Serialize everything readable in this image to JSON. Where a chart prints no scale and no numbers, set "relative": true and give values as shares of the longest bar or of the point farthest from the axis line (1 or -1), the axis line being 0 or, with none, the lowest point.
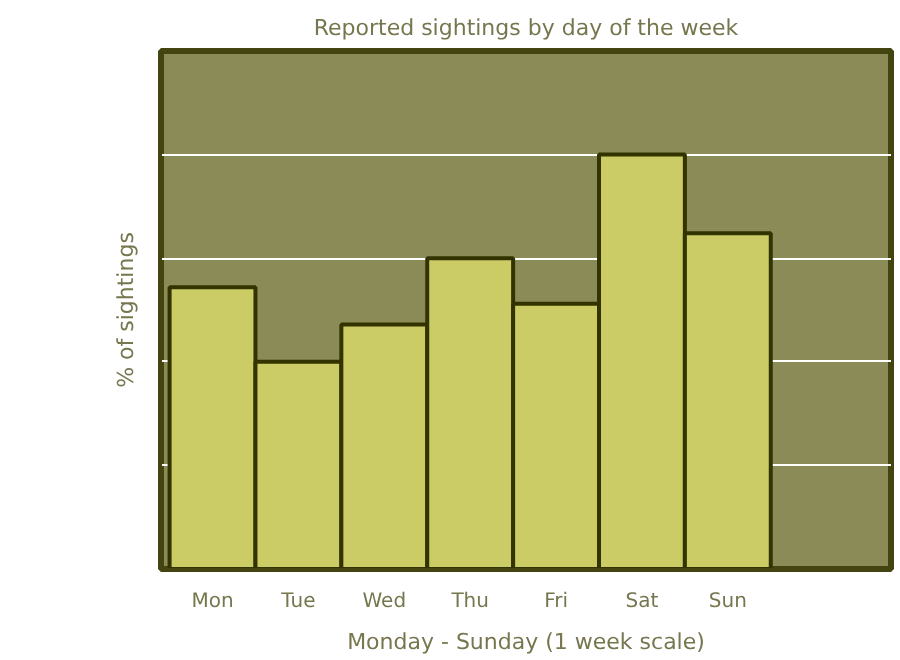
{
  "chart_data": {
    "type": "bar",
    "title": "Reported sightings by day of the week",
    "xlabel": "Monday - Sunday (1 week scale)",
    "ylabel": "% of sightings",
    "categories": [
      "Mon",
      "Tue",
      "Wed",
      "Thu",
      "Fri",
      "Sat",
      "Sun"
    ],
    "values": [
      0.68,
      0.5,
      0.59,
      0.75,
      0.64,
      1,
      0.81
    ],
    "color": "#cccc66",
    "relative": true,
    "grid": "y"
  }
}
